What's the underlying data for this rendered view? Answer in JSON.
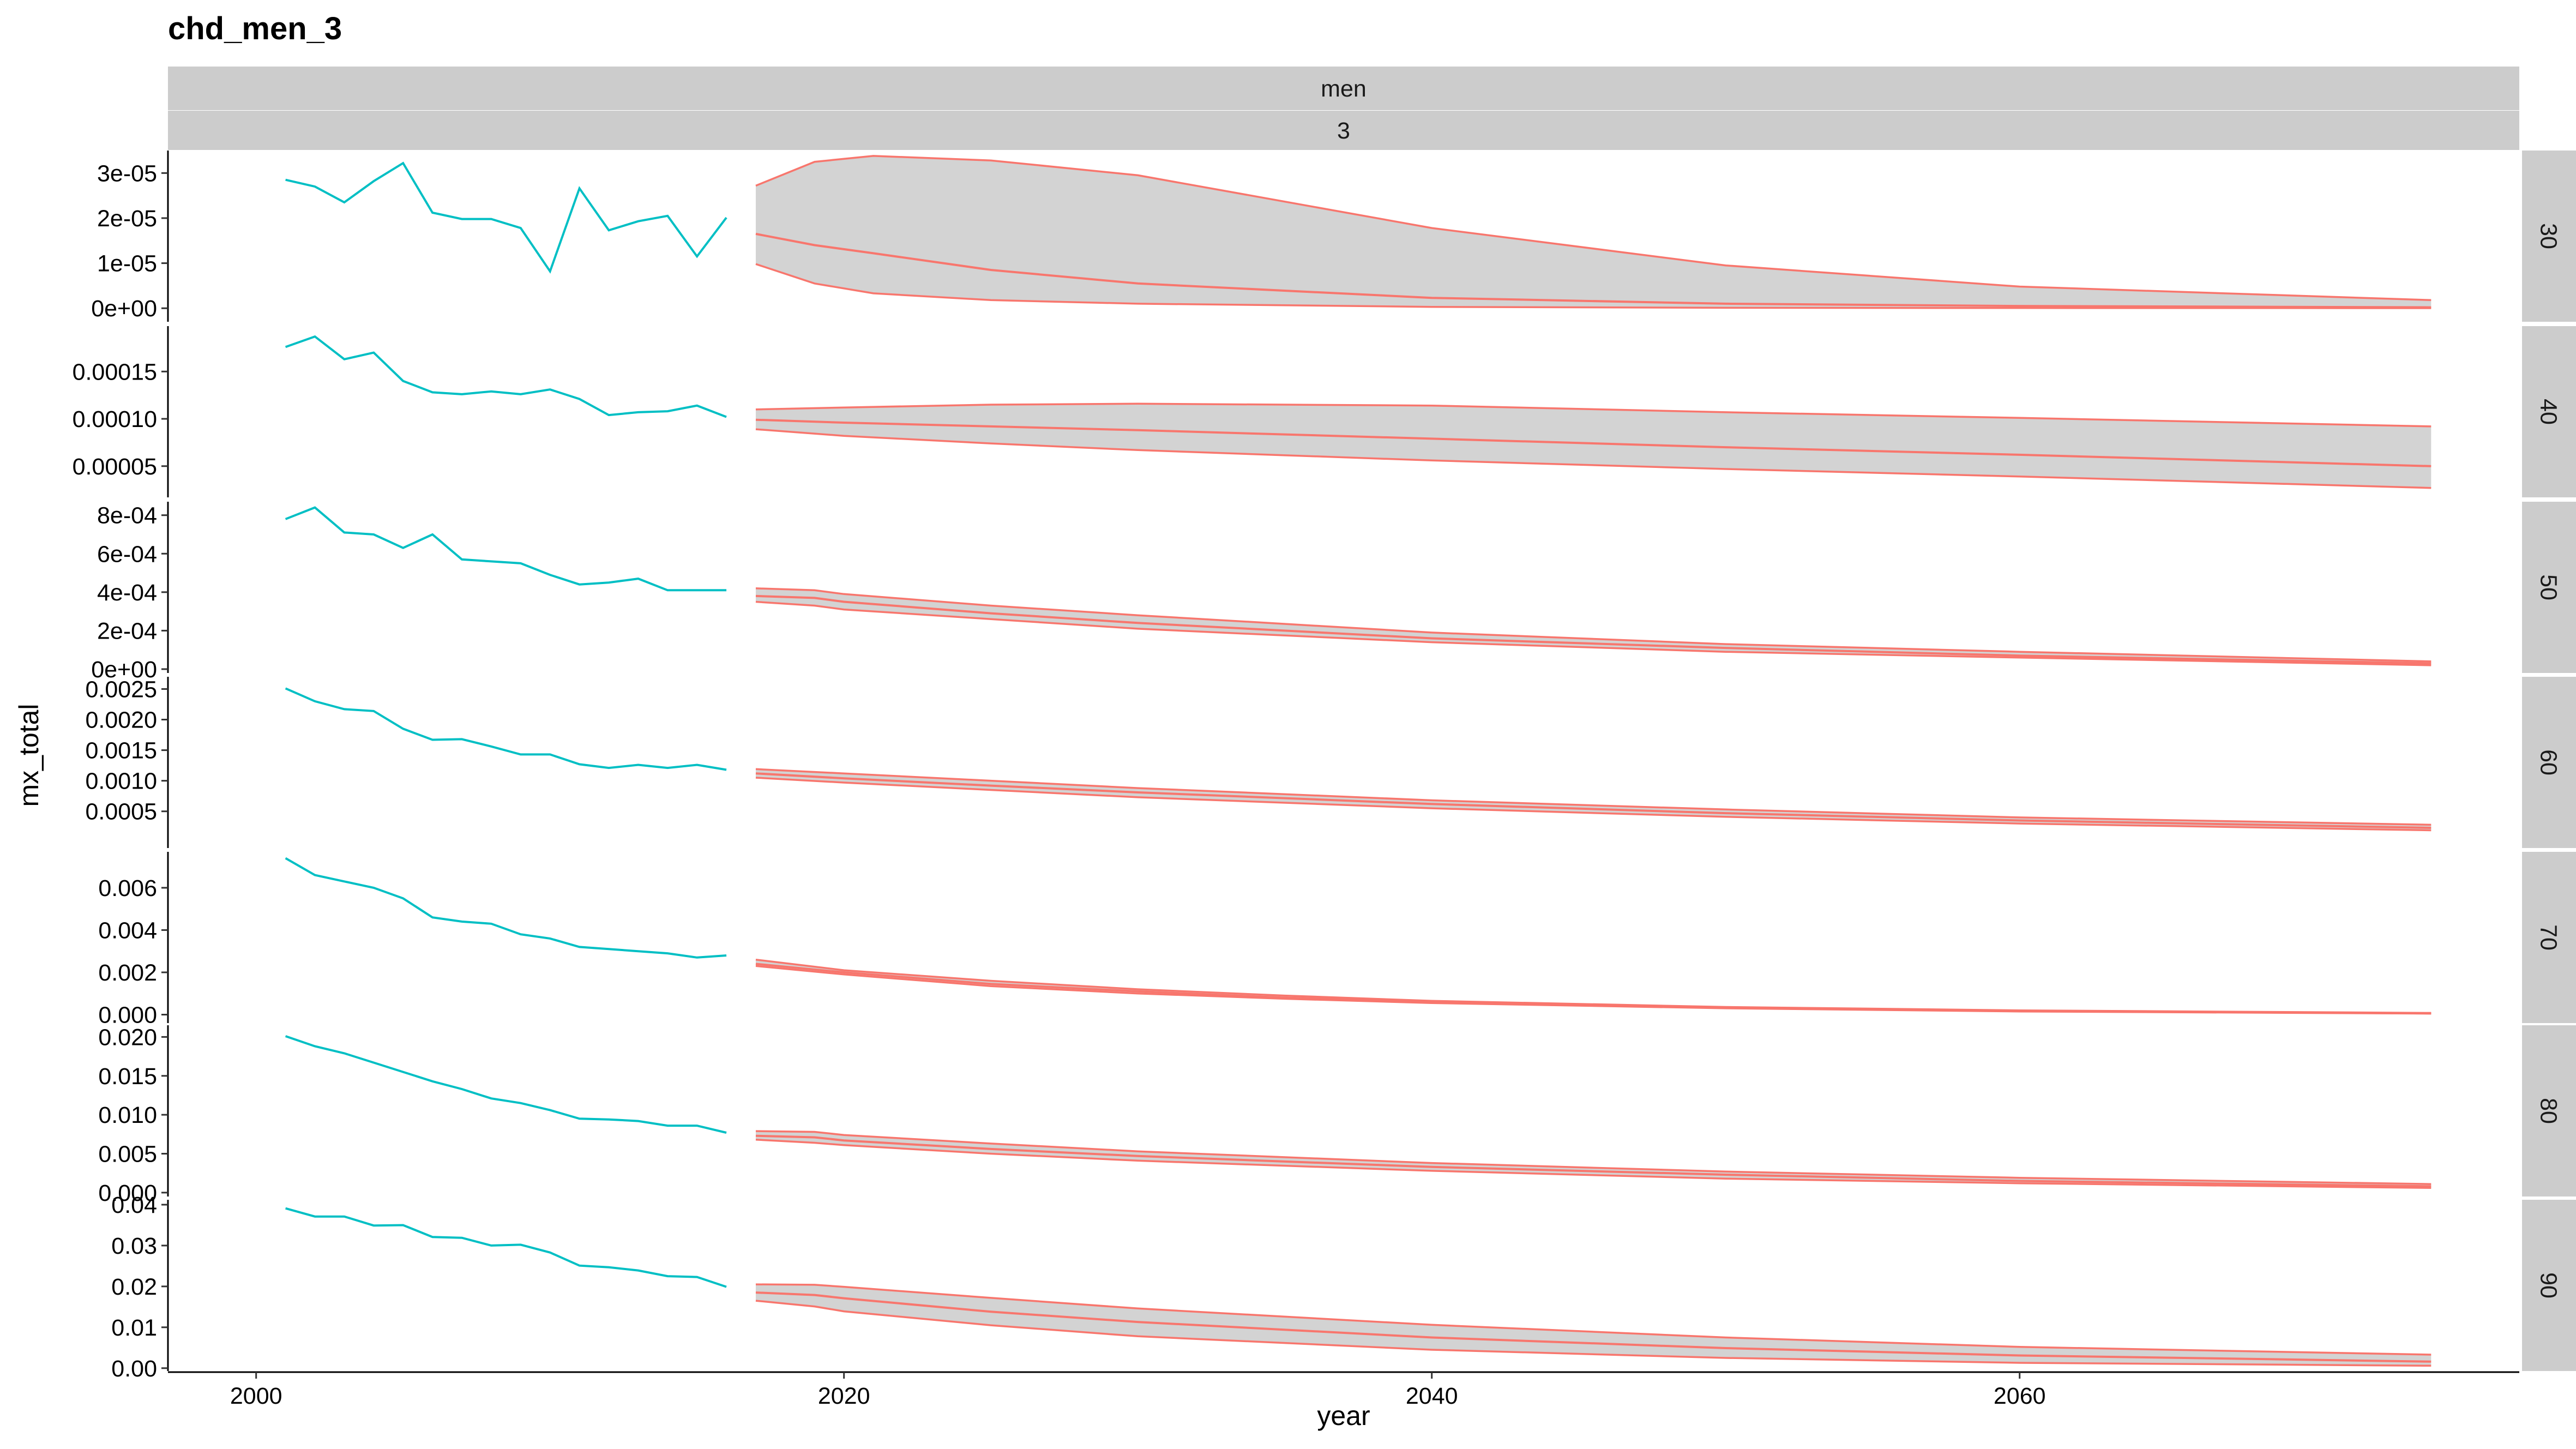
{
  "chart_data": {
    "type": "line",
    "title": "chd_men_3",
    "xlabel": "year",
    "ylabel": "mx_total",
    "strips": {
      "top": [
        "men",
        "3"
      ]
    },
    "x_ticks": [
      2000,
      2020,
      2040,
      2060
    ],
    "xlim": [
      1997,
      2077
    ],
    "grid": false,
    "legend": "none",
    "colors": {
      "observed": "#00BFC4",
      "forecast": "#F8766D",
      "band": "#D3D3D3",
      "strip": "#CCCCCC"
    },
    "panels": [
      {
        "facet": "30",
        "ylim": [
          -3e-06,
          3.5e-05
        ],
        "y_ticks": [
          0,
          1e-05,
          2e-05,
          3e-05
        ],
        "y_tick_labels": [
          "0e+00",
          "1e-05",
          "2e-05",
          "3e-05"
        ],
        "observed": {
          "x": [
            2001,
            2002,
            2003,
            2004,
            2005,
            2006,
            2007,
            2008,
            2009,
            2010,
            2011,
            2012,
            2013,
            2014,
            2015,
            2016
          ],
          "y": [
            2.85e-05,
            2.7e-05,
            2.35e-05,
            2.82e-05,
            3.22e-05,
            2.12e-05,
            1.98e-05,
            1.98e-05,
            1.78e-05,
            8.2e-06,
            2.66e-05,
            1.73e-05,
            1.93e-05,
            2.05e-05,
            1.15e-05,
            2.01e-05
          ]
        },
        "forecast": {
          "x": [
            2017,
            2019,
            2021,
            2025,
            2030,
            2040,
            2050,
            2060,
            2074
          ],
          "lower": [
            9.8e-06,
            5.5e-06,
            3.3e-06,
            1.8e-06,
            1e-06,
            3e-07,
            1e-07,
            5e-08,
            2e-08
          ],
          "mid": [
            1.65e-05,
            1.4e-05,
            1.22e-05,
            8.5e-06,
            5.5e-06,
            2.3e-06,
            1e-06,
            5e-07,
            2e-07
          ],
          "upper": [
            2.72e-05,
            3.25e-05,
            3.38e-05,
            3.28e-05,
            2.95e-05,
            1.78e-05,
            9.5e-06,
            4.8e-06,
            1.8e-06
          ]
        }
      },
      {
        "facet": "40",
        "ylim": [
          1.7e-05,
          0.000198
        ],
        "y_ticks": [
          5e-05,
          0.0001,
          0.00015
        ],
        "y_tick_labels": [
          "0.00005",
          "0.00010",
          "0.00015"
        ],
        "observed": {
          "x": [
            2001,
            2002,
            2003,
            2004,
            2005,
            2006,
            2007,
            2008,
            2009,
            2010,
            2011,
            2012,
            2013,
            2014,
            2015,
            2016
          ],
          "y": [
            0.000176,
            0.000187,
            0.000163,
            0.00017,
            0.00014,
            0.000128,
            0.000126,
            0.000129,
            0.000126,
            0.000131,
            0.000121,
            0.000104,
            0.000107,
            0.000108,
            0.000114,
            0.000102
          ]
        },
        "forecast": {
          "x": [
            2017,
            2020,
            2025,
            2030,
            2040,
            2050,
            2060,
            2074
          ],
          "lower": [
            8.9e-05,
            8.2e-05,
            7.4e-05,
            6.7e-05,
            5.6e-05,
            4.7e-05,
            3.9e-05,
            2.7e-05
          ],
          "mid": [
            9.9e-05,
            9.6e-05,
            9.2e-05,
            8.8e-05,
            7.9e-05,
            7e-05,
            6.2e-05,
            5e-05
          ],
          "upper": [
            0.00011,
            0.000112,
            0.000115,
            0.000116,
            0.000114,
            0.000107,
            0.000101,
            9.2e-05
          ]
        }
      },
      {
        "facet": "50",
        "ylim": [
          -2e-05,
          0.00087
        ],
        "y_ticks": [
          0,
          0.0002,
          0.0004,
          0.0006,
          0.0008
        ],
        "y_tick_labels": [
          "0e+00",
          "2e-04",
          "4e-04",
          "6e-04",
          "8e-04"
        ],
        "observed": {
          "x": [
            2001,
            2002,
            2003,
            2004,
            2005,
            2006,
            2007,
            2008,
            2009,
            2010,
            2011,
            2012,
            2013,
            2014,
            2015,
            2016
          ],
          "y": [
            0.00078,
            0.00084,
            0.00071,
            0.0007,
            0.00063,
            0.0007,
            0.00057,
            0.00056,
            0.00055,
            0.00049,
            0.00044,
            0.00045,
            0.00047,
            0.00041,
            0.00041,
            0.00041
          ]
        },
        "forecast": {
          "x": [
            2017,
            2019,
            2020,
            2025,
            2030,
            2040,
            2050,
            2060,
            2074
          ],
          "lower": [
            0.00035,
            0.00033,
            0.00031,
            0.00026,
            0.00021,
            0.00014,
            9e-05,
            6e-05,
            2e-05
          ],
          "mid": [
            0.00038,
            0.00037,
            0.00035,
            0.00029,
            0.00024,
            0.00016,
            0.00011,
            7e-05,
            3e-05
          ],
          "upper": [
            0.00042,
            0.00041,
            0.00039,
            0.00033,
            0.00028,
            0.00019,
            0.00013,
            9e-05,
            4e-05
          ]
        }
      },
      {
        "facet": "60",
        "ylim": [
          -0.0001,
          0.0027
        ],
        "y_ticks": [
          0.0005,
          0.001,
          0.0015,
          0.002,
          0.0025
        ],
        "y_tick_labels": [
          "0.0005",
          "0.0010",
          "0.0015",
          "0.0020",
          "0.0025"
        ],
        "observed": {
          "x": [
            2001,
            2002,
            2003,
            2004,
            2005,
            2006,
            2007,
            2008,
            2009,
            2010,
            2011,
            2012,
            2013,
            2014,
            2015,
            2016
          ],
          "y": [
            0.00251,
            0.0023,
            0.00217,
            0.00214,
            0.00185,
            0.00167,
            0.00168,
            0.00156,
            0.00143,
            0.00143,
            0.00127,
            0.00121,
            0.00126,
            0.00121,
            0.00126,
            0.00118
          ]
        },
        "forecast": {
          "x": [
            2017,
            2020,
            2025,
            2030,
            2040,
            2050,
            2060,
            2074
          ],
          "lower": [
            0.00105,
            0.00097,
            0.00085,
            0.00073,
            0.00055,
            0.00041,
            0.0003,
            0.00019
          ],
          "mid": [
            0.00112,
            0.00104,
            0.00092,
            0.00081,
            0.00062,
            0.00047,
            0.00035,
            0.00023
          ],
          "upper": [
            0.00119,
            0.00112,
            0.001,
            0.00088,
            0.00068,
            0.00053,
            0.0004,
            0.00028
          ]
        }
      },
      {
        "facet": "70",
        "ylim": [
          -0.0004,
          0.0077
        ],
        "y_ticks": [
          0,
          0.002,
          0.004,
          0.006
        ],
        "y_tick_labels": [
          "0.000",
          "0.002",
          "0.004",
          "0.006"
        ],
        "observed": {
          "x": [
            2001,
            2002,
            2003,
            2004,
            2005,
            2006,
            2007,
            2008,
            2009,
            2010,
            2011,
            2012,
            2013,
            2014,
            2015,
            2016
          ],
          "y": [
            0.0074,
            0.0066,
            0.0063,
            0.006,
            0.0055,
            0.0046,
            0.0044,
            0.0043,
            0.0038,
            0.0036,
            0.0032,
            0.0031,
            0.003,
            0.0029,
            0.0027,
            0.0028
          ]
        },
        "forecast": {
          "x": [
            2017,
            2020,
            2025,
            2030,
            2035,
            2040,
            2050,
            2060,
            2074
          ],
          "lower": [
            0.0023,
            0.0019,
            0.00135,
            0.001,
            0.00075,
            0.00055,
            0.0003,
            0.00015,
            5e-05
          ],
          "mid": [
            0.0024,
            0.002,
            0.00145,
            0.0011,
            0.0008,
            0.0006,
            0.00033,
            0.00018,
            6e-05
          ],
          "upper": [
            0.0026,
            0.0021,
            0.0016,
            0.0012,
            0.0009,
            0.00065,
            0.00036,
            0.0002,
            8e-05
          ]
        }
      },
      {
        "facet": "80",
        "ylim": [
          -0.0005,
          0.0215
        ],
        "y_ticks": [
          0,
          0.005,
          0.01,
          0.015,
          0.02
        ],
        "y_tick_labels": [
          "0.000",
          "0.005",
          "0.010",
          "0.015",
          "0.020"
        ],
        "observed": {
          "x": [
            2001,
            2002,
            2003,
            2004,
            2005,
            2006,
            2007,
            2008,
            2009,
            2010,
            2011,
            2012,
            2013,
            2014,
            2015,
            2016
          ],
          "y": [
            0.0201,
            0.0188,
            0.0179,
            0.0167,
            0.0155,
            0.0143,
            0.0133,
            0.0121,
            0.0115,
            0.0106,
            0.0095,
            0.0094,
            0.0092,
            0.0086,
            0.0086,
            0.0077
          ]
        },
        "forecast": {
          "x": [
            2017,
            2019,
            2020,
            2025,
            2030,
            2040,
            2050,
            2060,
            2074
          ],
          "lower": [
            0.0068,
            0.0064,
            0.0061,
            0.005,
            0.0041,
            0.0028,
            0.0018,
            0.0012,
            0.0006
          ],
          "mid": [
            0.0073,
            0.0071,
            0.0067,
            0.0056,
            0.0047,
            0.0033,
            0.0023,
            0.0015,
            0.0008
          ],
          "upper": [
            0.0079,
            0.0078,
            0.0074,
            0.0063,
            0.0053,
            0.0038,
            0.0027,
            0.0019,
            0.0011
          ]
        }
      },
      {
        "facet": "90",
        "ylim": [
          -0.0007,
          0.0412
        ],
        "y_ticks": [
          0,
          0.01,
          0.02,
          0.03,
          0.04
        ],
        "y_tick_labels": [
          "0.00",
          "0.01",
          "0.02",
          "0.03",
          "0.04"
        ],
        "observed": {
          "x": [
            2001,
            2002,
            2003,
            2004,
            2005,
            2006,
            2007,
            2008,
            2009,
            2010,
            2011,
            2012,
            2013,
            2014,
            2015,
            2016
          ],
          "y": [
            0.0391,
            0.0371,
            0.0371,
            0.0349,
            0.035,
            0.0321,
            0.0319,
            0.03,
            0.0302,
            0.0283,
            0.0251,
            0.0247,
            0.0239,
            0.0225,
            0.0223,
            0.0199
          ]
        },
        "forecast": {
          "x": [
            2017,
            2019,
            2020,
            2025,
            2030,
            2040,
            2050,
            2060,
            2074
          ],
          "lower": [
            0.0165,
            0.0151,
            0.0139,
            0.0105,
            0.0078,
            0.0045,
            0.0025,
            0.0013,
            0.0006
          ],
          "mid": [
            0.0185,
            0.0179,
            0.0171,
            0.0138,
            0.0113,
            0.0075,
            0.0049,
            0.0031,
            0.0016
          ],
          "upper": [
            0.0205,
            0.0204,
            0.0199,
            0.0172,
            0.0146,
            0.0106,
            0.0075,
            0.0052,
            0.0033
          ]
        }
      }
    ]
  }
}
